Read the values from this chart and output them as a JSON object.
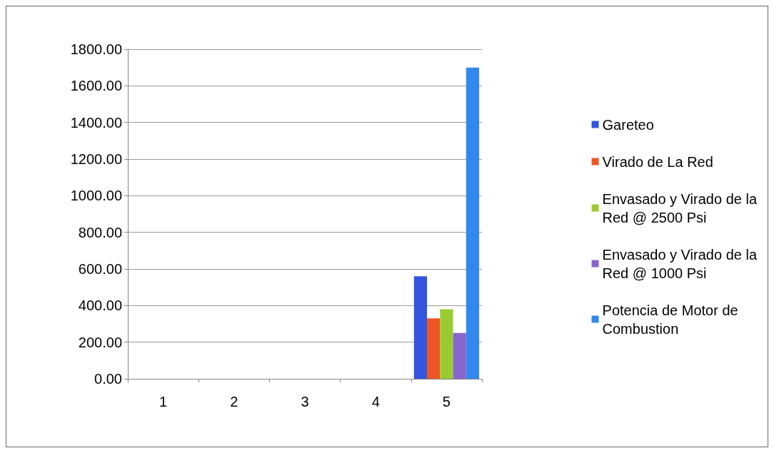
{
  "chart_data": {
    "type": "bar",
    "categories": [
      "1",
      "2",
      "3",
      "4",
      "5"
    ],
    "series": [
      {
        "name": "Gareteo",
        "color": "#3355dd",
        "values": [
          null,
          null,
          null,
          null,
          560
        ]
      },
      {
        "name": "Virado de La Red",
        "color": "#ee5522",
        "values": [
          null,
          null,
          null,
          null,
          330
        ]
      },
      {
        "name": "Envasado y Virado de la Red @ 2500 Psi",
        "color": "#99cc33",
        "values": [
          null,
          null,
          null,
          null,
          380
        ]
      },
      {
        "name": "Envasado y Virado de la Red @ 1000 Psi",
        "color": "#8866cc",
        "values": [
          null,
          null,
          null,
          null,
          250
        ]
      },
      {
        "name": "Potencia de Motor de Combustion",
        "color": "#3388ee",
        "values": [
          null,
          null,
          null,
          null,
          1700
        ]
      }
    ],
    "ylim": [
      0,
      1800
    ],
    "yticks": [
      {
        "value": 0,
        "label": "0.00"
      },
      {
        "value": 200,
        "label": "200.00"
      },
      {
        "value": 400,
        "label": "400.00"
      },
      {
        "value": 600,
        "label": "600.00"
      },
      {
        "value": 800,
        "label": "800.00"
      },
      {
        "value": 1000,
        "label": "1000.00"
      },
      {
        "value": 1200,
        "label": "1200.00"
      },
      {
        "value": 1400,
        "label": "1400.00"
      },
      {
        "value": 1600,
        "label": "1600.00"
      },
      {
        "value": 1800,
        "label": "1800.00"
      }
    ],
    "grid": "y",
    "legend": "right"
  }
}
